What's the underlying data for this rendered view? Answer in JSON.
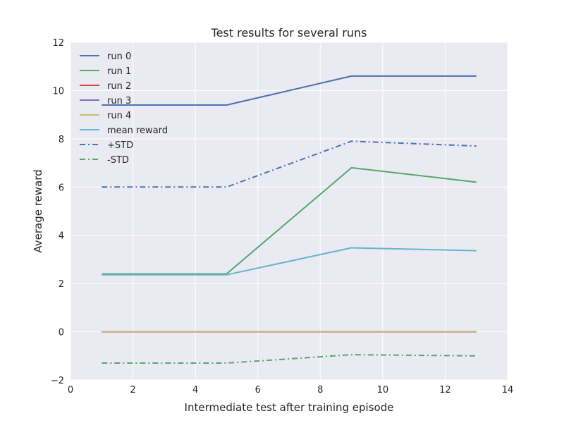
{
  "chart_data": {
    "type": "line",
    "title": "Test results for several runs",
    "xlabel": "Intermediate test after training episode",
    "ylabel": "Average reward",
    "xlim": [
      0,
      14
    ],
    "ylim": [
      -2,
      12
    ],
    "xticks": [
      0,
      2,
      4,
      6,
      8,
      10,
      12,
      14
    ],
    "yticks": [
      -2,
      0,
      2,
      4,
      6,
      8,
      10,
      12
    ],
    "grid": true,
    "legend_position": "top-left",
    "x": [
      1,
      5,
      9,
      13
    ],
    "series": [
      {
        "name": "run 0",
        "values": [
          9.4,
          9.4,
          10.6,
          10.6
        ],
        "color": "#4c72b0",
        "style": "solid"
      },
      {
        "name": "run 1",
        "values": [
          2.4,
          2.4,
          6.8,
          6.2
        ],
        "color": "#55a868",
        "style": "solid"
      },
      {
        "name": "run 2",
        "values": [
          0,
          0,
          0,
          0
        ],
        "color": "#c44e52",
        "style": "solid"
      },
      {
        "name": "run 3",
        "values": [
          0,
          0,
          0,
          0
        ],
        "color": "#8172b2",
        "style": "solid"
      },
      {
        "name": "run 4",
        "values": [
          0,
          0,
          0,
          0
        ],
        "color": "#ccb974",
        "style": "solid"
      },
      {
        "name": "mean reward",
        "values": [
          2.36,
          2.36,
          3.48,
          3.36
        ],
        "color": "#64b5cd",
        "style": "solid"
      },
      {
        "name": "+STD",
        "values": [
          6.0,
          6.0,
          7.9,
          7.7
        ],
        "color": "#4c72b0",
        "style": "dashdot"
      },
      {
        "name": "-STD",
        "values": [
          -1.3,
          -1.3,
          -0.95,
          -1.0
        ],
        "color": "#55a868",
        "style": "dashdot"
      }
    ]
  }
}
